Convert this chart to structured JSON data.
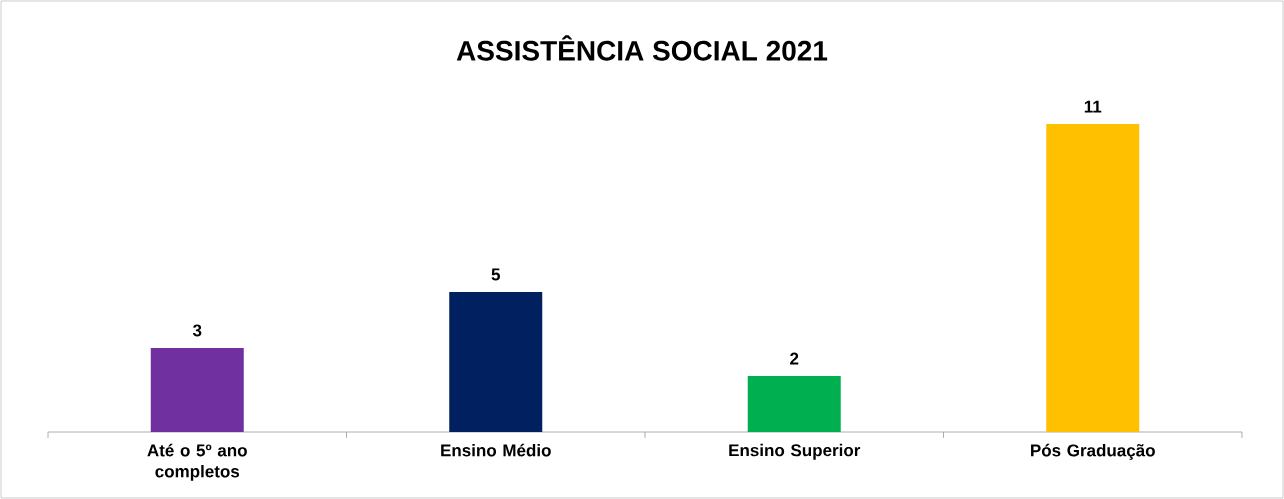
{
  "chart_data": {
    "type": "bar",
    "title": "ASSISTÊNCIA SOCIAL 2021",
    "categories": [
      "Até o 5º ano completos",
      "Ensino Médio",
      "Ensino Superior",
      "Pós Graduação"
    ],
    "values": [
      3,
      5,
      2,
      11
    ],
    "colors": [
      "#7030a0",
      "#002060",
      "#00b050",
      "#ffc000"
    ],
    "data_labels": true
  }
}
